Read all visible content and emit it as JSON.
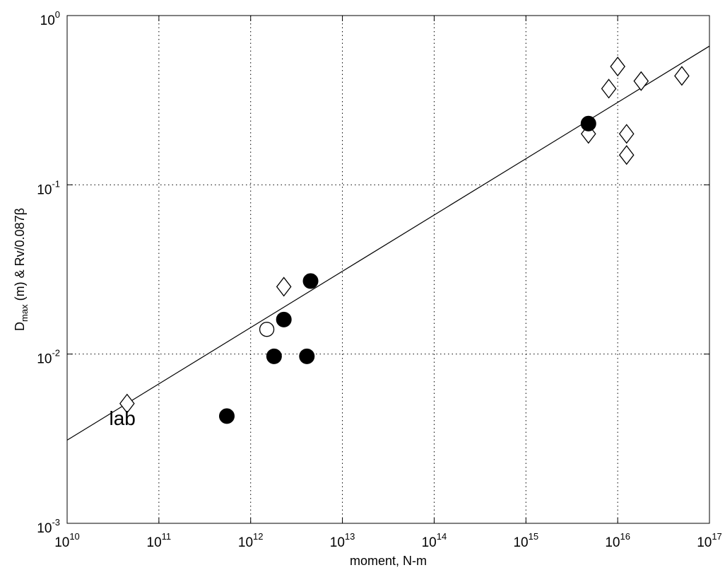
{
  "chart_data": {
    "type": "scatter",
    "title": "",
    "xlabel": "moment, N-m",
    "ylabel": {
      "main": "D",
      "sub": "max",
      "rest": " (m)  &  Rv/0.087β"
    },
    "x_scale": "log",
    "y_scale": "log",
    "xlim": [
      10000000000.0,
      1e+17
    ],
    "ylim": [
      0.001,
      1
    ],
    "grid": true,
    "x_ticks": [
      {
        "value": 10000000000.0,
        "base": "10",
        "exp": "10"
      },
      {
        "value": 100000000000.0,
        "base": "10",
        "exp": "11"
      },
      {
        "value": 1000000000000.0,
        "base": "10",
        "exp": "12"
      },
      {
        "value": 10000000000000.0,
        "base": "10",
        "exp": "13"
      },
      {
        "value": 100000000000000.0,
        "base": "10",
        "exp": "14"
      },
      {
        "value": 1000000000000000.0,
        "base": "10",
        "exp": "15"
      },
      {
        "value": 1e+16,
        "base": "10",
        "exp": "16"
      },
      {
        "value": 1e+17,
        "base": "10",
        "exp": "17"
      }
    ],
    "y_ticks": [
      {
        "value": 0.001,
        "base": "10",
        "exp": "-3"
      },
      {
        "value": 0.01,
        "base": "10",
        "exp": "-2"
      },
      {
        "value": 0.1,
        "base": "10",
        "exp": "-1"
      },
      {
        "value": 1,
        "base": "10",
        "exp": "0"
      }
    ],
    "series": [
      {
        "marker": "diamond-open",
        "points": [
          {
            "x": 45000000000.0,
            "y": 0.0051
          },
          {
            "x": 2300000000000.0,
            "y": 0.025
          },
          {
            "x": 4800000000000000.0,
            "y": 0.2
          },
          {
            "x": 8000000000000000.0,
            "y": 0.37
          },
          {
            "x": 1e+16,
            "y": 0.5
          },
          {
            "x": 1.25e+16,
            "y": 0.2
          },
          {
            "x": 1.25e+16,
            "y": 0.15
          },
          {
            "x": 1.8e+16,
            "y": 0.41
          },
          {
            "x": 5e+16,
            "y": 0.44
          }
        ]
      },
      {
        "marker": "circle-filled",
        "points": [
          {
            "x": 550000000000.0,
            "y": 0.0043
          },
          {
            "x": 1800000000000.0,
            "y": 0.0097
          },
          {
            "x": 2300000000000.0,
            "y": 0.016
          },
          {
            "x": 4100000000000.0,
            "y": 0.0097
          },
          {
            "x": 4500000000000.0,
            "y": 0.027
          },
          {
            "x": 4800000000000000.0,
            "y": 0.23
          }
        ]
      },
      {
        "marker": "circle-open",
        "points": [
          {
            "x": 1500000000000.0,
            "y": 0.014
          }
        ]
      }
    ],
    "fit_line": {
      "points": [
        {
          "x": 10000000000.0,
          "y": 0.0031
        },
        {
          "x": 1e+17,
          "y": 0.66
        }
      ]
    },
    "annotations": [
      {
        "text": "lab",
        "x": 40000000000.0,
        "y": 0.0038
      }
    ]
  }
}
